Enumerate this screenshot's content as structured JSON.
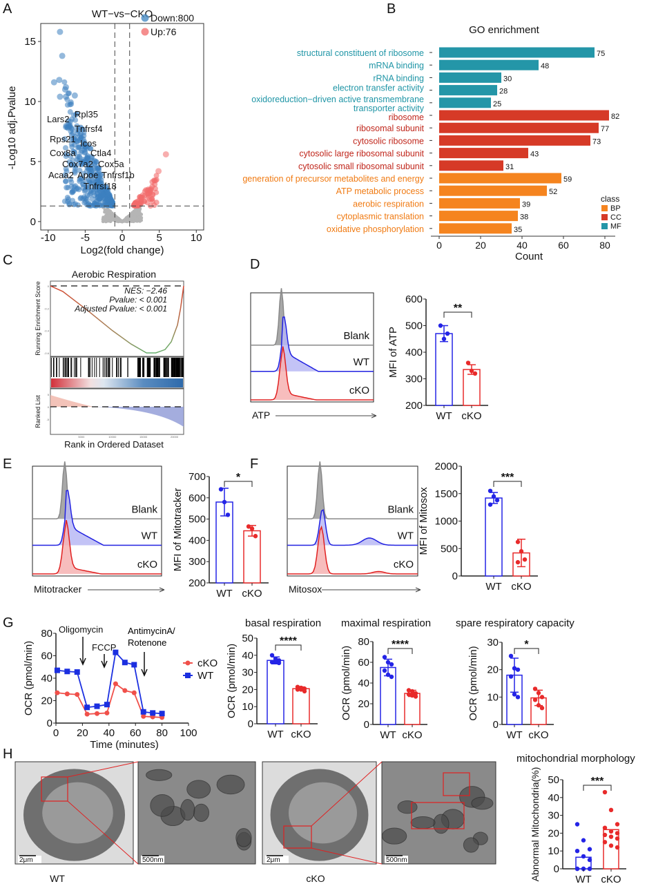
{
  "panel_letters": [
    "A",
    "B",
    "C",
    "D",
    "E",
    "F",
    "G",
    "H"
  ],
  "chart_data": [
    {
      "id": "A",
      "type": "scatter",
      "title": "WT−vs−CKO",
      "xlabel": "Log2(fold change)",
      "ylabel": "-Log10 adj.Pvalue",
      "xlim": [
        -11,
        11
      ],
      "ylim": [
        -0.7,
        16.5
      ],
      "xticks": [
        -10,
        -5,
        0,
        5,
        10
      ],
      "yticks": [
        0,
        5,
        10,
        15
      ],
      "thresholds": {
        "log2fc": [
          -1,
          1
        ],
        "neg_log10_p": 1.3
      },
      "legend": [
        {
          "label": "Down:800",
          "color": "#4a8cc4"
        },
        {
          "label": "Up:76",
          "color": "#f27272"
        }
      ],
      "series": [
        {
          "name": "Down:800",
          "count": 800,
          "color": "#3d7fc0",
          "extreme_points": [
            [
              -8.4,
              15.8
            ],
            [
              -8.1,
              13.8
            ],
            [
              -9.2,
              11.6
            ],
            [
              -8.5,
              11.8
            ],
            [
              -7.6,
              11.2
            ],
            [
              -7.7,
              11
            ],
            [
              -8.4,
              10.4
            ],
            [
              -7.6,
              10.4
            ],
            [
              -6.4,
              10.5
            ],
            [
              -4.5,
              1.4
            ]
          ]
        },
        {
          "name": "Up:76",
          "count": 76,
          "color": "#f26b6b",
          "extreme_points": [
            [
              5.9,
              5.6
            ],
            [
              4.9,
              4.2
            ]
          ]
        }
      ],
      "gene_labels": [
        "Lars2",
        "Rpl35",
        "Tnfrsf4",
        "Rps21",
        "Icos",
        "Cox8a",
        "Ctla4",
        "Cox7a2",
        "Cox5a",
        "Acaa2",
        "Apoe",
        "Tnfrsf1b",
        "Tnfrsf18"
      ]
    },
    {
      "id": "B",
      "type": "bar",
      "orientation": "horizontal",
      "title": "GO enrichment",
      "xlabel": "Count",
      "xlim": [
        0,
        85
      ],
      "xticks": [
        0,
        20,
        40,
        60,
        80
      ],
      "legend_title": "class",
      "classes": [
        {
          "name": "BP",
          "color": "#f5841f"
        },
        {
          "name": "CC",
          "color": "#d63a27"
        },
        {
          "name": "MF",
          "color": "#2496a8"
        }
      ],
      "categories": [
        "structural constituent of ribosome",
        "mRNA binding",
        "rRNA binding",
        "electron transfer activity",
        "oxidoreduction−driven active transmembrane transporter activity",
        "ribosome",
        "ribosomal subunit",
        "cytosolic ribosome",
        "cytosolic large ribosomal subunit",
        "cytosolic small ribosomal subunit",
        "generation of precursor metabolites and energy",
        "ATP metabolic process",
        "aerobic respiration",
        "cytoplasmic translation",
        "oxidative phosphorylation"
      ],
      "class_of": [
        "MF",
        "MF",
        "MF",
        "MF",
        "MF",
        "CC",
        "CC",
        "CC",
        "CC",
        "CC",
        "BP",
        "BP",
        "BP",
        "BP",
        "BP"
      ],
      "values": [
        75,
        48,
        30,
        28,
        25,
        82,
        77,
        73,
        43,
        31,
        59,
        52,
        39,
        38,
        35
      ]
    },
    {
      "id": "C",
      "type": "line",
      "title": "Aerobic Respiration",
      "ylabel": "Running Enrichment Score",
      "ylabel2": "Ranked List",
      "xlabel": "Rank in Ordered Dataset",
      "xlim": [
        0,
        21500
      ],
      "xticks": [
        5000,
        10000,
        15000,
        20000
      ],
      "ylim": [
        -0.65,
        0.02
      ],
      "yticks": [
        0.0,
        -0.2,
        -0.4,
        -0.6
      ],
      "ranked_yticks": [
        5,
        0,
        -5
      ],
      "annotations": [
        "NES: −2.46",
        "Pvalue: < 0.001",
        "Adjusted Pvalue: < 0.001"
      ],
      "es_curve": {
        "x": [
          0,
          2000,
          6000,
          10000,
          13000,
          15500,
          17000,
          18500,
          19500,
          20500,
          21000,
          21500
        ],
        "y": [
          0,
          -0.05,
          -0.22,
          -0.4,
          -0.52,
          -0.6,
          -0.6,
          -0.57,
          -0.5,
          -0.35,
          -0.2,
          0
        ]
      }
    },
    {
      "id": "D",
      "type": "bar",
      "ylabel": "MFI of ATP",
      "ylim": [
        200,
        600
      ],
      "yticks": [
        200,
        300,
        400,
        500,
        600
      ],
      "categories": [
        "WT",
        "cKO"
      ],
      "values": [
        470,
        335
      ],
      "sd": [
        30,
        18
      ],
      "points": [
        [
          500,
          450,
          470
        ],
        [
          360,
          330,
          320
        ]
      ],
      "significance": "**",
      "histogram": {
        "axis_label": "ATP",
        "tracks": [
          "Blank",
          "WT",
          "cKO"
        ]
      }
    },
    {
      "id": "E",
      "type": "bar",
      "ylabel": "MFI of Mitotracker",
      "ylim": [
        200,
        700
      ],
      "yticks": [
        200,
        300,
        400,
        500,
        600,
        700
      ],
      "categories": [
        "WT",
        "cKO"
      ],
      "values": [
        580,
        445
      ],
      "sd": [
        65,
        25
      ],
      "points": [
        [
          640,
          580,
          520
        ],
        [
          465,
          455,
          420
        ]
      ],
      "significance": "*",
      "histogram": {
        "axis_label": "Mitotracker",
        "tracks": [
          "Blank",
          "WT",
          "cKO"
        ]
      }
    },
    {
      "id": "F",
      "type": "bar",
      "ylabel": "MFI of Mitosox",
      "ylim": [
        0,
        2000
      ],
      "yticks": [
        0,
        500,
        1000,
        1500,
        2000
      ],
      "categories": [
        "WT",
        "cKO"
      ],
      "values": [
        1420,
        420
      ],
      "sd": [
        100,
        250
      ],
      "points": [
        [
          1550,
          1450,
          1380,
          1300
        ],
        [
          620,
          450,
          300,
          250
        ]
      ],
      "significance": "***",
      "histogram": {
        "axis_label": "Mitosox",
        "tracks": [
          "Blank",
          "WT",
          "cKO"
        ]
      }
    },
    {
      "id": "G1",
      "type": "line",
      "xlabel": "Time (minutes)",
      "ylabel": "OCR (pmol/min)",
      "xlim": [
        0,
        100
      ],
      "ylim": [
        0,
        80
      ],
      "xticks": [
        0,
        20,
        40,
        60,
        80,
        100
      ],
      "yticks": [
        0,
        20,
        40,
        60,
        80
      ],
      "x": [
        1,
        8.5,
        16,
        23.5,
        31,
        38.5,
        45,
        52,
        59,
        66,
        73,
        80
      ],
      "series": [
        {
          "name": "cKO",
          "color": "#f0504a",
          "marker": "circle",
          "values": [
            27,
            26,
            25.5,
            8,
            8.5,
            9,
            35,
            29,
            27,
            6,
            5.5,
            5
          ]
        },
        {
          "name": "WT",
          "color": "#1b2fe0",
          "marker": "square",
          "values": [
            47,
            46,
            45.5,
            14,
            15,
            16.5,
            63,
            54,
            52,
            10,
            9,
            8.5
          ]
        }
      ],
      "injections": [
        {
          "label": "Oligomycin",
          "x": 20
        },
        {
          "label": "FCCP",
          "x": 36.5
        },
        {
          "label": "AntimycinA/\nRotenone",
          "x": 66
        }
      ]
    },
    {
      "id": "G2",
      "type": "bar",
      "title": "basal respiration",
      "ylabel": "OCR (pmol/min)",
      "ylim": [
        0,
        50
      ],
      "yticks": [
        0,
        10,
        20,
        30,
        40,
        50
      ],
      "categories": [
        "WT",
        "cKO"
      ],
      "values": [
        37,
        20.5
      ],
      "sd": [
        2,
        1
      ],
      "points": [
        [
          40,
          38,
          37,
          36,
          36,
          35.5
        ],
        [
          21.5,
          21,
          20.5,
          20,
          20,
          19
        ]
      ],
      "significance": "****"
    },
    {
      "id": "G3",
      "type": "bar",
      "title": "maximal respiration",
      "ylabel": "OCR (pmol/min)",
      "ylim": [
        0,
        80
      ],
      "yticks": [
        0,
        20,
        40,
        60,
        80
      ],
      "categories": [
        "WT",
        "cKO"
      ],
      "values": [
        55,
        30
      ],
      "sd": [
        8,
        3
      ],
      "points": [
        [
          65,
          60,
          58,
          52,
          48,
          46
        ],
        [
          33,
          32,
          30,
          29,
          28,
          27
        ]
      ],
      "significance": "****"
    },
    {
      "id": "G4",
      "type": "bar",
      "title": "spare respiratory capacity",
      "ylabel": "OCR (pmol/min)",
      "ylim": [
        0,
        30
      ],
      "yticks": [
        0,
        10,
        20,
        30
      ],
      "categories": [
        "WT",
        "cKO"
      ],
      "values": [
        18,
        9.7
      ],
      "sd": [
        6.2,
        2.8
      ],
      "points": [
        [
          25,
          20.5,
          20,
          17.5,
          11,
          10
        ],
        [
          13,
          11.5,
          10,
          9,
          7,
          6
        ]
      ],
      "significance": "*"
    },
    {
      "id": "H",
      "type": "bar",
      "title": "mitochondrial morphology",
      "ylabel": "Abnormal Mitochondria(%)",
      "ylim": [
        0,
        50
      ],
      "yticks": [
        0,
        10,
        20,
        30,
        40,
        50
      ],
      "categories": [
        "WT",
        "cKO"
      ],
      "values": [
        6.5,
        22
      ],
      "points": [
        [
          25,
          16,
          11,
          10,
          7,
          5,
          0,
          0,
          0,
          0,
          0,
          0
        ],
        [
          43,
          33,
          25,
          23,
          21,
          20,
          19,
          18,
          17,
          15,
          13,
          12
        ]
      ],
      "significance": "***"
    }
  ],
  "em_images": {
    "scale_bars": [
      "2μm",
      "500nm",
      "2μm",
      "500nm"
    ],
    "captions": [
      "WT",
      "cKO"
    ]
  }
}
